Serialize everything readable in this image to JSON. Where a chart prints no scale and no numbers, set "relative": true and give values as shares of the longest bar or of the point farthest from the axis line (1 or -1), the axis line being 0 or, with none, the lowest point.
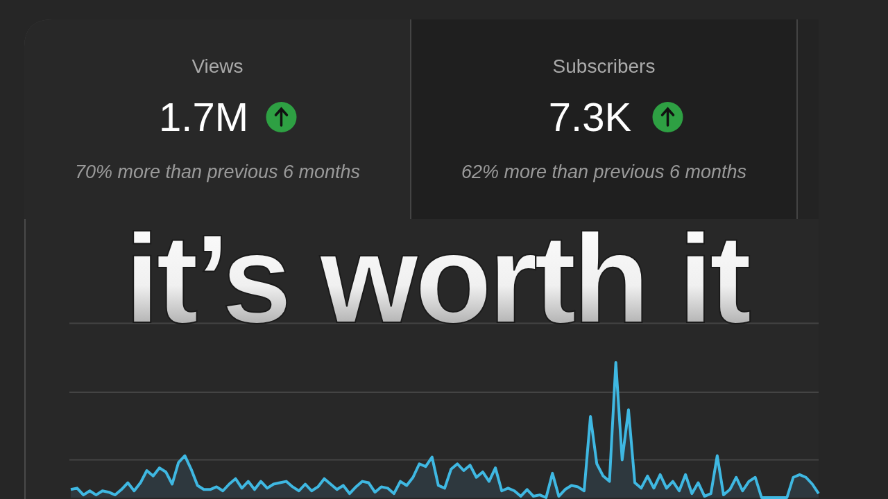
{
  "chart_data": [
    {
      "type": "other",
      "title": "Views",
      "annotations": [
        "1.7M",
        "70% more than previous 6 months"
      ]
    },
    {
      "type": "other",
      "title": "Subscribers",
      "annotations": [
        "7.3K",
        "62% more than previous 6 months"
      ]
    },
    {
      "type": "area",
      "title": "it’s worth it",
      "relative": true,
      "color": "#3fb8e2",
      "ref_lines": [
        {
          "axis": "y",
          "value": 0.28,
          "color": "#444444"
        },
        {
          "axis": "y",
          "value": 0.78,
          "color": "#444444"
        },
        {
          "axis": "y",
          "value": 1.29,
          "color": "#444444"
        }
      ],
      "categories": [
        null,
        null,
        null,
        null,
        null,
        null,
        null,
        null,
        null,
        null,
        null,
        null,
        null,
        null,
        null,
        null,
        null,
        null,
        null,
        null,
        null,
        null,
        null,
        null,
        null,
        null,
        null,
        null,
        null,
        null,
        null,
        null,
        null,
        null,
        null,
        null,
        null,
        null,
        null,
        null,
        null,
        null,
        null,
        null,
        null,
        null,
        null,
        null,
        null,
        null,
        null,
        null,
        null,
        null,
        null,
        null,
        null,
        null,
        null,
        null,
        null,
        null,
        null,
        null,
        null,
        null,
        null,
        null,
        null,
        null,
        null,
        null,
        null,
        null,
        null,
        null,
        null,
        null,
        null,
        null,
        null,
        null,
        null,
        null,
        null,
        null,
        null,
        null,
        null,
        null,
        null,
        null,
        null,
        null,
        null,
        null,
        null,
        null,
        null,
        null,
        null,
        null,
        null,
        null,
        null,
        null,
        null,
        null,
        null,
        null,
        null,
        null,
        null,
        null,
        null,
        null,
        null,
        null,
        null
      ],
      "values": [
        0.06,
        0.07,
        0.02,
        0.05,
        0.02,
        0.05,
        0.04,
        0.02,
        0.06,
        0.11,
        0.05,
        0.11,
        0.2,
        0.16,
        0.22,
        0.19,
        0.1,
        0.26,
        0.31,
        0.21,
        0.09,
        0.06,
        0.06,
        0.08,
        0.05,
        0.1,
        0.14,
        0.07,
        0.12,
        0.06,
        0.12,
        0.07,
        0.1,
        0.11,
        0.12,
        0.08,
        0.05,
        0.1,
        0.05,
        0.08,
        0.14,
        0.1,
        0.06,
        0.09,
        0.03,
        0.08,
        0.12,
        0.11,
        0.04,
        0.08,
        0.07,
        0.03,
        0.12,
        0.09,
        0.15,
        0.25,
        0.23,
        0.3,
        0.09,
        0.07,
        0.21,
        0.25,
        0.2,
        0.24,
        0.15,
        0.19,
        0.12,
        0.22,
        0.05,
        0.07,
        0.05,
        0.01,
        0.06,
        0.01,
        0.02,
        0,
        0.18,
        0.01,
        0.06,
        0.09,
        0.08,
        0.05,
        0.6,
        0.25,
        0.16,
        0.12,
        1,
        0.28,
        0.65,
        0.11,
        0.07,
        0.16,
        0.07,
        0.17,
        0.07,
        0.12,
        0.05,
        0.17,
        0.03,
        0.11,
        0.01,
        0.03,
        0.31,
        0.02,
        0.06,
        0.15,
        0.05,
        0.12,
        0.15,
        0,
        0,
        0,
        0,
        0,
        0.15,
        0.17,
        0.15,
        0.1,
        0.03
      ]
    }
  ]
}
